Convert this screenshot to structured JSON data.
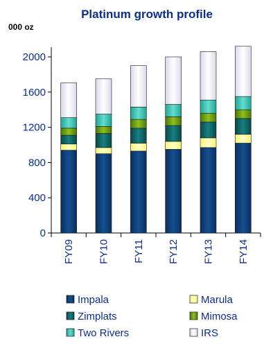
{
  "chart_data": {
    "type": "bar",
    "stacked": true,
    "title": "Platinum growth profile",
    "unit_label": "000 oz",
    "categories": [
      "FY09",
      "FY10",
      "FY11",
      "FY12",
      "FY13",
      "FY14"
    ],
    "ylim": [
      0,
      2000
    ],
    "yticks": [
      0,
      400,
      800,
      1200,
      1600,
      2000
    ],
    "grid": false,
    "legend_position": "bottom",
    "series": [
      {
        "name": "Impala",
        "color": "#0d3b73",
        "values": [
          940,
          900,
          930,
          950,
          970,
          1020
        ]
      },
      {
        "name": "Marula",
        "color": "#ffff99",
        "values": [
          70,
          70,
          90,
          90,
          110,
          100
        ]
      },
      {
        "name": "Zimplats",
        "color": "#0e5f5f",
        "values": [
          100,
          160,
          170,
          180,
          180,
          180
        ]
      },
      {
        "name": "Mimosa",
        "color": "#6b9a12",
        "values": [
          80,
          80,
          100,
          100,
          100,
          100
        ]
      },
      {
        "name": "Two Rivers",
        "color": "#33c1b3",
        "values": [
          120,
          140,
          140,
          140,
          150,
          150
        ]
      },
      {
        "name": "IRS",
        "color": "#ececf6",
        "values": [
          395,
          400,
          470,
          540,
          550,
          570
        ]
      }
    ]
  }
}
